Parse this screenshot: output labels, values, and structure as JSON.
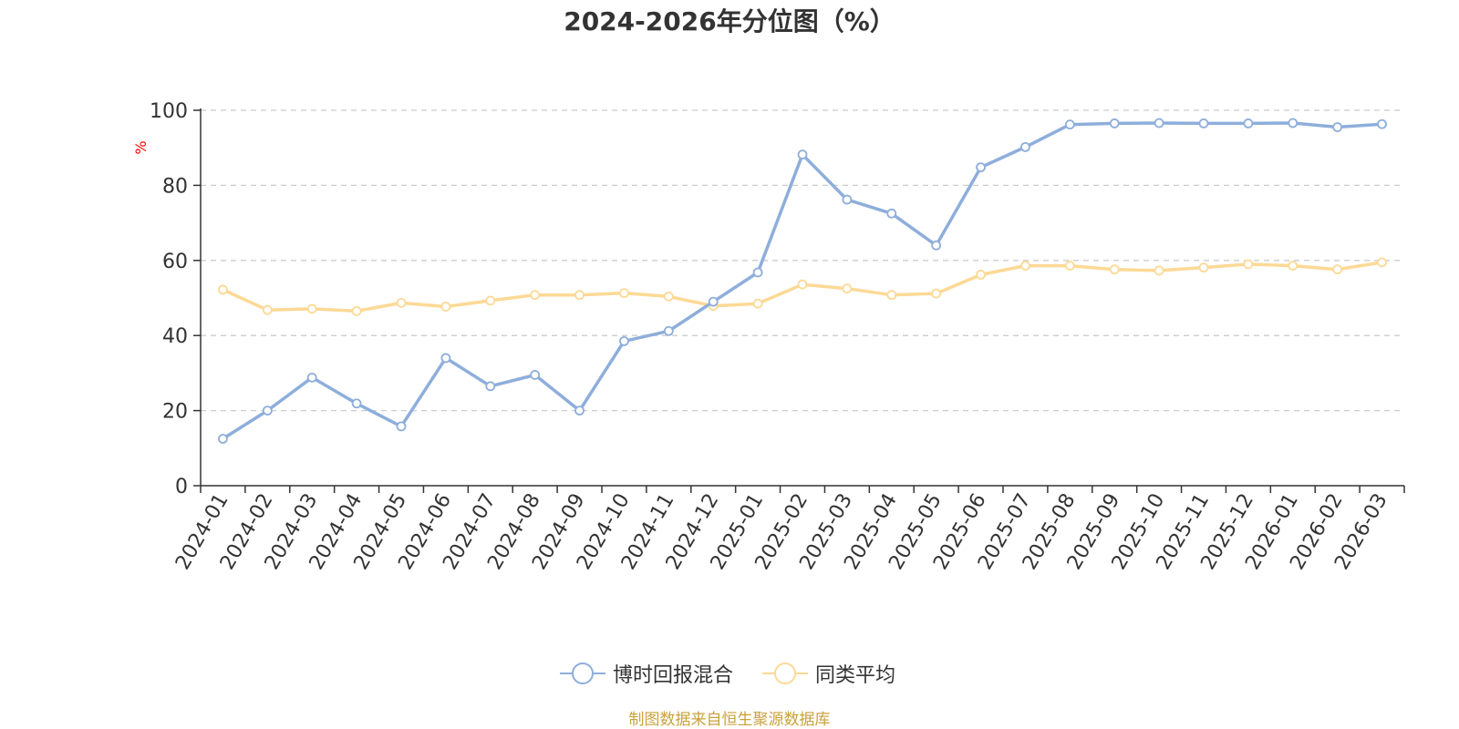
{
  "title": "2024-2026年分位图（%）",
  "source_note": "制图数据来自恒生聚源数据库",
  "colors": {
    "series1": "#8eaedb",
    "series2": "#fcd995",
    "axis": "#333333",
    "grid": "#cccccc",
    "unit_label": "#ff0000",
    "source_note": "#c9a23c"
  },
  "chart_data": {
    "type": "line",
    "title": "2024-2026年分位图（%）",
    "ylabel": "%",
    "xlabel": "",
    "ylim": [
      0,
      100
    ],
    "yticks": [
      0,
      20,
      40,
      60,
      80,
      100
    ],
    "grid": true,
    "legend_position": "bottom",
    "categories": [
      "2024-01",
      "2024-02",
      "2024-03",
      "2024-04",
      "2024-05",
      "2024-06",
      "2024-07",
      "2024-08",
      "2024-09",
      "2024-10",
      "2024-11",
      "2024-12",
      "2025-01",
      "2025-02",
      "2025-03",
      "2025-04",
      "2025-05",
      "2025-06",
      "2025-07",
      "2025-08",
      "2025-09",
      "2025-10",
      "2025-11",
      "2025-12",
      "2026-01",
      "2026-02",
      "2026-03"
    ],
    "series": [
      {
        "name": "博时回报混合",
        "color": "#8eaedb",
        "values": [
          12.5,
          20.0,
          28.8,
          21.9,
          15.8,
          34.0,
          26.5,
          29.5,
          20.0,
          38.5,
          41.2,
          49.0,
          56.8,
          88.2,
          76.2,
          72.5,
          64.0,
          84.8,
          90.2,
          96.2,
          96.5,
          96.6,
          96.5,
          96.5,
          96.6,
          95.5,
          96.3
        ]
      },
      {
        "name": "同类平均",
        "color": "#fcd995",
        "values": [
          52.2,
          46.8,
          47.1,
          46.5,
          48.7,
          47.7,
          49.3,
          50.8,
          50.8,
          51.3,
          50.4,
          47.9,
          48.5,
          53.6,
          52.5,
          50.8,
          51.2,
          56.2,
          58.6,
          58.6,
          57.6,
          57.3,
          58.1,
          59.0,
          58.6,
          57.6,
          59.5
        ]
      }
    ]
  }
}
